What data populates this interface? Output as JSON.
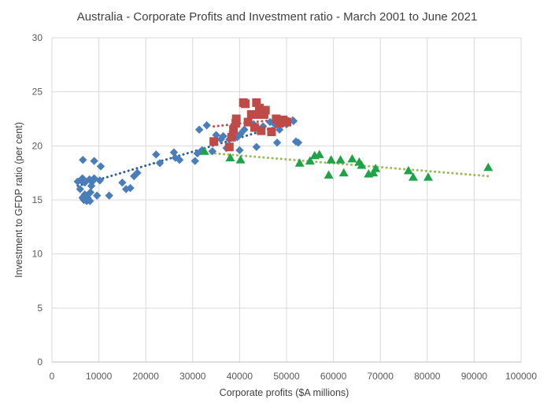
{
  "chart_data": {
    "type": "scatter",
    "title": "Australia - Corporate Profits and Investment ratio - March 2001 to June 2021",
    "xlabel": "Corporate profits ($A millions)",
    "ylabel": "Investment to GFDP ratio (per cent)",
    "xlim": [
      0,
      100000
    ],
    "ylim": [
      0,
      30
    ],
    "xticks": [
      "0",
      "10000",
      "20000",
      "30000",
      "40000",
      "50000",
      "60000",
      "70000",
      "80000",
      "90000",
      "100000"
    ],
    "yticks": [
      "0",
      "5",
      "10",
      "15",
      "20",
      "25",
      "30"
    ],
    "grid": true,
    "series": [
      {
        "marker": "diamond",
        "color": "#4a7ebb",
        "trend_color": "#2e5fa0",
        "trend": [
          [
            5500,
            16.3
          ],
          [
            52000,
            22.3
          ]
        ],
        "points": [
          [
            5500,
            16.7
          ],
          [
            6000,
            16.0
          ],
          [
            6200,
            16.8
          ],
          [
            6500,
            17.0
          ],
          [
            6500,
            15.2
          ],
          [
            6600,
            18.7
          ],
          [
            6800,
            15.0
          ],
          [
            7000,
            15.5
          ],
          [
            7000,
            16.6
          ],
          [
            7400,
            14.9
          ],
          [
            7600,
            15.2
          ],
          [
            8000,
            16.9
          ],
          [
            8100,
            14.9
          ],
          [
            8200,
            15.7
          ],
          [
            8400,
            16.3
          ],
          [
            8600,
            16.7
          ],
          [
            9000,
            18.6
          ],
          [
            9000,
            17.0
          ],
          [
            9600,
            15.4
          ],
          [
            10200,
            16.8
          ],
          [
            10400,
            18.1
          ],
          [
            12200,
            15.4
          ],
          [
            15000,
            16.6
          ],
          [
            15800,
            16.0
          ],
          [
            16700,
            16.1
          ],
          [
            17500,
            17.2
          ],
          [
            18200,
            17.5
          ],
          [
            22200,
            19.2
          ],
          [
            23000,
            18.4
          ],
          [
            26000,
            19.4
          ],
          [
            26300,
            18.9
          ],
          [
            27200,
            18.7
          ],
          [
            30500,
            18.6
          ],
          [
            31000,
            19.3
          ],
          [
            31400,
            21.5
          ],
          [
            32000,
            19.6
          ],
          [
            33000,
            21.9
          ],
          [
            34200,
            19.5
          ],
          [
            35000,
            21.0
          ],
          [
            36000,
            20.6
          ],
          [
            36500,
            20.9
          ],
          [
            37200,
            19.8
          ],
          [
            37800,
            20.6
          ],
          [
            38500,
            21.3
          ],
          [
            39500,
            20.8
          ],
          [
            40200,
            21.1
          ],
          [
            40000,
            19.6
          ],
          [
            41000,
            21.5
          ],
          [
            43000,
            22.0
          ],
          [
            43600,
            19.9
          ],
          [
            44200,
            21.5
          ],
          [
            45000,
            21.8
          ],
          [
            46500,
            22.2
          ],
          [
            47500,
            22.0
          ],
          [
            48000,
            20.3
          ],
          [
            48500,
            21.5
          ],
          [
            50000,
            22.0
          ],
          [
            51500,
            22.3
          ],
          [
            52000,
            20.4
          ],
          [
            52500,
            20.3
          ]
        ]
      },
      {
        "marker": "square",
        "color": "#be4b48",
        "trend_color": "#c0504d",
        "trend": [
          [
            34500,
            21.8
          ],
          [
            51500,
            22.6
          ]
        ],
        "points": [
          [
            34500,
            20.4
          ],
          [
            37800,
            19.9
          ],
          [
            38300,
            20.8
          ],
          [
            38700,
            21.5
          ],
          [
            39200,
            22.1
          ],
          [
            39300,
            22.5
          ],
          [
            40800,
            24.0
          ],
          [
            41200,
            23.9
          ],
          [
            41800,
            22.2
          ],
          [
            42500,
            22.9
          ],
          [
            43200,
            21.7
          ],
          [
            43600,
            24.0
          ],
          [
            43800,
            22.9
          ],
          [
            44200,
            23.5
          ],
          [
            44600,
            21.4
          ],
          [
            45200,
            22.9
          ],
          [
            45500,
            23.3
          ],
          [
            46800,
            21.3
          ],
          [
            47800,
            22.5
          ],
          [
            48500,
            22.1
          ],
          [
            49300,
            22.4
          ],
          [
            50100,
            22.2
          ]
        ]
      },
      {
        "marker": "triangle",
        "color": "#1fa347",
        "trend_color": "#9bbb59",
        "trend": [
          [
            32000,
            19.4
          ],
          [
            93000,
            17.2
          ]
        ],
        "points": [
          [
            32500,
            19.5
          ],
          [
            38000,
            18.9
          ],
          [
            40200,
            18.7
          ],
          [
            52800,
            18.4
          ],
          [
            55000,
            18.6
          ],
          [
            56000,
            19.1
          ],
          [
            57000,
            19.2
          ],
          [
            59000,
            17.3
          ],
          [
            59500,
            18.7
          ],
          [
            61500,
            18.7
          ],
          [
            62200,
            17.5
          ],
          [
            64000,
            18.8
          ],
          [
            65500,
            18.5
          ],
          [
            66000,
            18.2
          ],
          [
            67500,
            17.4
          ],
          [
            68500,
            17.5
          ],
          [
            69000,
            17.9
          ],
          [
            76000,
            17.7
          ],
          [
            77000,
            17.1
          ],
          [
            80200,
            17.1
          ],
          [
            93000,
            18.0
          ]
        ]
      }
    ]
  }
}
